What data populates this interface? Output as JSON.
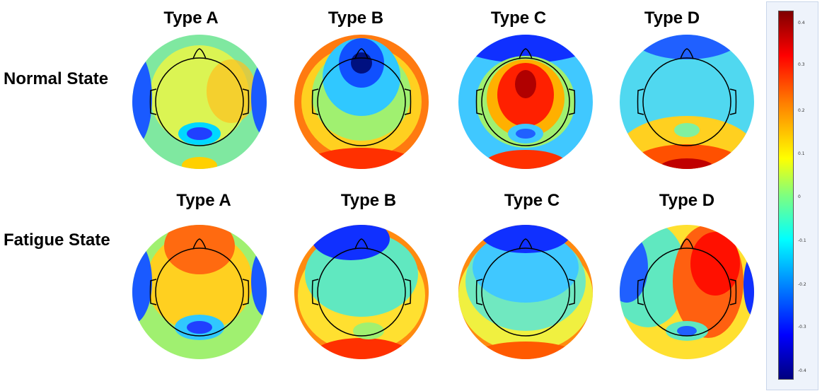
{
  "row_labels": {
    "normal": "Normal State",
    "fatigue": "Fatigue State"
  },
  "normal_types": [
    "Type A",
    "Type B",
    "Type C",
    "Type D"
  ],
  "fatigue_types": [
    "Type A",
    "Type B",
    "Type C",
    "Type D"
  ],
  "colorbar": {
    "ticks": [
      "0.4",
      "0.3",
      "0.2",
      "0.1",
      "0",
      "-0.1",
      "-0.2",
      "-0.3",
      "-0.4"
    ],
    "colors": [
      "#7f0000",
      "#ff0000",
      "#ff7f00",
      "#ffff00",
      "#7fff7f",
      "#00ffff",
      "#007fff",
      "#0000ff",
      "#00007f"
    ]
  }
}
